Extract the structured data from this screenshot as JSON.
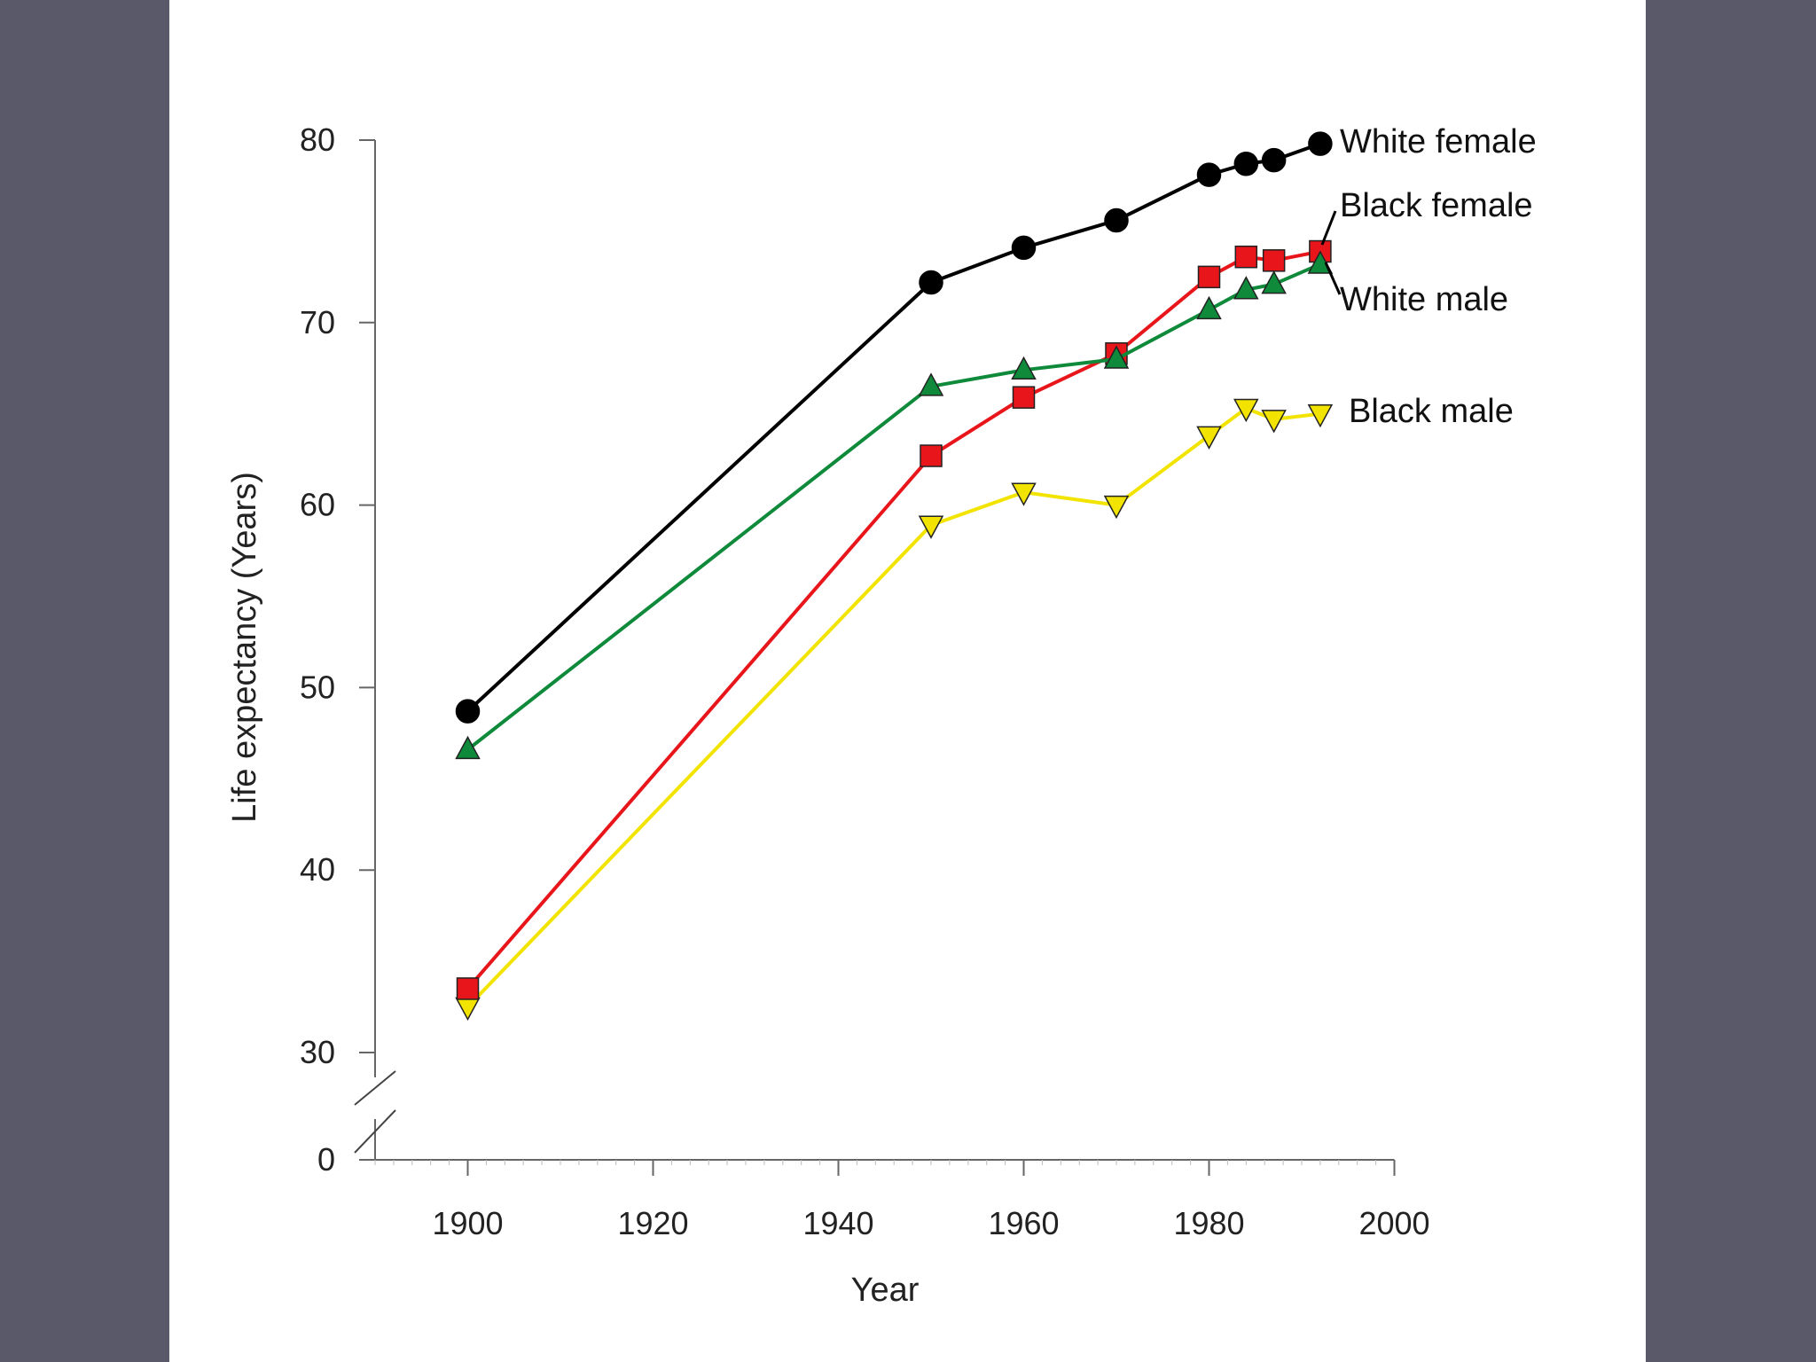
{
  "colors": {
    "background": "#595969",
    "panel": "#ffffff",
    "axis": "#666666"
  },
  "chart_data": {
    "type": "line",
    "xlabel": "Year",
    "ylabel": "Life expectancy  (Years)",
    "xlim": [
      1890,
      2000
    ],
    "ylim": [
      0,
      80
    ],
    "axis_break": {
      "from": 0,
      "to": 30
    },
    "x_ticks": [
      1900,
      1920,
      1940,
      1960,
      1980,
      2000
    ],
    "y_ticks": [
      0,
      30,
      40,
      50,
      60,
      70,
      80
    ],
    "grid": false,
    "legend": "direct labels at line ends (right)",
    "series": [
      {
        "name": "White female",
        "color": "#000000",
        "marker": "circle",
        "x": [
          1900,
          1950,
          1960,
          1970,
          1980,
          1984,
          1987,
          1992
        ],
        "y": [
          48.7,
          72.2,
          74.1,
          75.6,
          78.1,
          78.7,
          78.9,
          79.8
        ]
      },
      {
        "name": "Black female",
        "color": "#e8161b",
        "marker": "square",
        "x": [
          1900,
          1950,
          1960,
          1970,
          1980,
          1984,
          1987,
          1992
        ],
        "y": [
          33.5,
          62.7,
          65.9,
          68.3,
          72.5,
          73.6,
          73.4,
          73.9
        ]
      },
      {
        "name": "White male",
        "color": "#0e8a3a",
        "marker": "triangle-up",
        "x": [
          1900,
          1950,
          1960,
          1970,
          1980,
          1984,
          1987,
          1992
        ],
        "y": [
          46.6,
          66.5,
          67.4,
          68.0,
          70.7,
          71.8,
          72.1,
          73.2
        ]
      },
      {
        "name": "Black male",
        "color": "#f2e400",
        "marker": "triangle-down",
        "x": [
          1900,
          1950,
          1960,
          1970,
          1980,
          1984,
          1987,
          1992
        ],
        "y": [
          32.5,
          58.9,
          60.7,
          60.0,
          63.8,
          65.3,
          64.7,
          65.0
        ]
      }
    ]
  }
}
